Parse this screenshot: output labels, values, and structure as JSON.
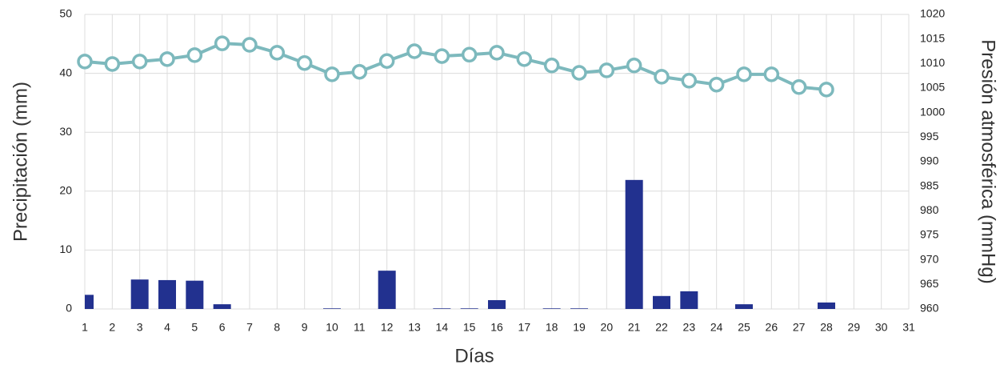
{
  "chart_data": {
    "type": "bar_line",
    "categories": [
      "1",
      "2",
      "3",
      "4",
      "5",
      "6",
      "7",
      "8",
      "9",
      "10",
      "11",
      "12",
      "13",
      "14",
      "15",
      "16",
      "17",
      "18",
      "19",
      "20",
      "21",
      "22",
      "23",
      "24",
      "25",
      "26",
      "27",
      "28",
      "29",
      "30",
      "31"
    ],
    "series": [
      {
        "name": "Precipitación",
        "type": "bar",
        "color": "#22318f",
        "values": [
          2.4,
          0,
          5.0,
          4.9,
          4.8,
          0.8,
          0,
          0,
          0,
          0.1,
          0,
          6.5,
          0,
          0.1,
          0.1,
          1.5,
          0,
          0.1,
          0.1,
          0,
          21.9,
          2.2,
          3.0,
          0,
          0.8,
          0,
          0,
          1.1,
          0,
          0,
          0
        ]
      },
      {
        "name": "Presión atmosférica",
        "type": "line",
        "axis": "y2",
        "color": "#7db9bd",
        "values": [
          1010.4,
          1009.9,
          1010.4,
          1010.9,
          1011.7,
          1014.1,
          1013.8,
          1012.2,
          1010.1,
          1007.8,
          1008.3,
          1010.5,
          1012.5,
          1011.5,
          1011.8,
          1012.2,
          1010.9,
          1009.6,
          1008.1,
          1008.6,
          1009.6,
          1007.3,
          1006.5,
          1005.7,
          1007.8,
          1007.8,
          1005.2,
          1004.7,
          null,
          null,
          null
        ]
      }
    ],
    "xlabel": "Días",
    "ylabel": "Precipitación (mm)",
    "y2label": "Presión atmosférica (mmHg)",
    "ylim": [
      0,
      50
    ],
    "yticks": [
      0,
      10,
      20,
      30,
      40,
      50
    ],
    "y2lim": [
      960,
      1020
    ],
    "y2ticks": [
      960,
      965,
      970,
      975,
      980,
      985,
      990,
      995,
      1000,
      1005,
      1010,
      1015,
      1020
    ],
    "grid": true
  }
}
